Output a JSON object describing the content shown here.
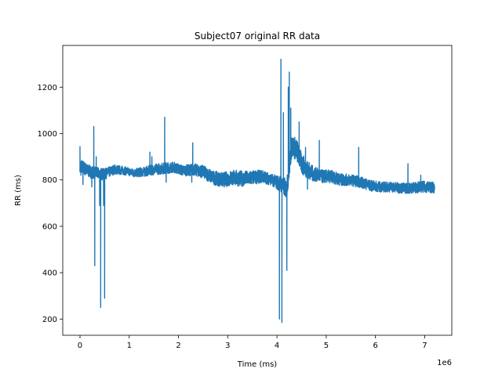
{
  "chart_data": {
    "type": "line",
    "title": "Subject07 original RR data",
    "xlabel": "Time (ms)",
    "ylabel": "RR (ms)",
    "x_offset_label": "1e6",
    "xlim": [
      -350000,
      7550000
    ],
    "ylim": [
      130,
      1380
    ],
    "x_ticks": [
      0,
      1000000,
      2000000,
      3000000,
      4000000,
      5000000,
      6000000,
      7000000
    ],
    "x_tick_labels": [
      "0",
      "1",
      "2",
      "3",
      "4",
      "5",
      "6",
      "7"
    ],
    "y_ticks": [
      200,
      400,
      600,
      800,
      1000,
      1200
    ],
    "y_tick_labels": [
      "200",
      "400",
      "600",
      "800",
      "1000",
      "1200"
    ],
    "grid": false,
    "series": [
      {
        "color": "#1f77b4",
        "baseline": [
          [
            0,
            865
          ],
          [
            150000,
            840
          ],
          [
            300000,
            830
          ],
          [
            500000,
            825
          ],
          [
            700000,
            845
          ],
          [
            900000,
            840
          ],
          [
            1100000,
            830
          ],
          [
            1300000,
            835
          ],
          [
            1500000,
            845
          ],
          [
            1700000,
            850
          ],
          [
            1900000,
            855
          ],
          [
            2100000,
            840
          ],
          [
            2300000,
            845
          ],
          [
            2500000,
            835
          ],
          [
            2700000,
            810
          ],
          [
            2900000,
            800
          ],
          [
            3100000,
            810
          ],
          [
            3300000,
            805
          ],
          [
            3500000,
            810
          ],
          [
            3700000,
            815
          ],
          [
            3900000,
            800
          ],
          [
            4000000,
            790
          ],
          [
            4100000,
            780
          ],
          [
            4200000,
            760
          ],
          [
            4300000,
            950
          ],
          [
            4400000,
            930
          ],
          [
            4500000,
            870
          ],
          [
            4700000,
            830
          ],
          [
            4900000,
            815
          ],
          [
            5100000,
            815
          ],
          [
            5300000,
            800
          ],
          [
            5500000,
            800
          ],
          [
            5700000,
            790
          ],
          [
            5900000,
            775
          ],
          [
            6100000,
            770
          ],
          [
            6300000,
            770
          ],
          [
            6500000,
            765
          ],
          [
            6700000,
            765
          ],
          [
            6900000,
            770
          ],
          [
            7100000,
            770
          ],
          [
            7200000,
            765
          ]
        ],
        "band_width": [
          [
            0,
            60
          ],
          [
            1000000,
            35
          ],
          [
            1700000,
            50
          ],
          [
            2000000,
            45
          ],
          [
            2700000,
            60
          ],
          [
            3200000,
            70
          ],
          [
            3900000,
            50
          ],
          [
            4300000,
            100
          ],
          [
            4500000,
            90
          ],
          [
            4800000,
            60
          ],
          [
            5500000,
            50
          ],
          [
            6200000,
            45
          ],
          [
            7200000,
            50
          ]
        ],
        "spikes": [
          [
            0,
            945
          ],
          [
            20000,
            820
          ],
          [
            60000,
            780
          ],
          [
            240000,
            770
          ],
          [
            280000,
            1030
          ],
          [
            300000,
            430
          ],
          [
            330000,
            900
          ],
          [
            400000,
            690
          ],
          [
            420000,
            250
          ],
          [
            450000,
            800
          ],
          [
            480000,
            690
          ],
          [
            500000,
            290
          ],
          [
            530000,
            820
          ],
          [
            1420000,
            920
          ],
          [
            1460000,
            900
          ],
          [
            1720000,
            1070
          ],
          [
            1750000,
            790
          ],
          [
            2270000,
            790
          ],
          [
            2290000,
            960
          ],
          [
            4050000,
            200
          ],
          [
            4080000,
            1320
          ],
          [
            4100000,
            185
          ],
          [
            4130000,
            1090
          ],
          [
            4200000,
            410
          ],
          [
            4230000,
            1200
          ],
          [
            4250000,
            1265
          ],
          [
            4280000,
            1110
          ],
          [
            4450000,
            1050
          ],
          [
            4580000,
            940
          ],
          [
            4620000,
            760
          ],
          [
            4860000,
            970
          ],
          [
            5660000,
            940
          ],
          [
            6660000,
            870
          ],
          [
            6920000,
            820
          ]
        ]
      }
    ]
  }
}
